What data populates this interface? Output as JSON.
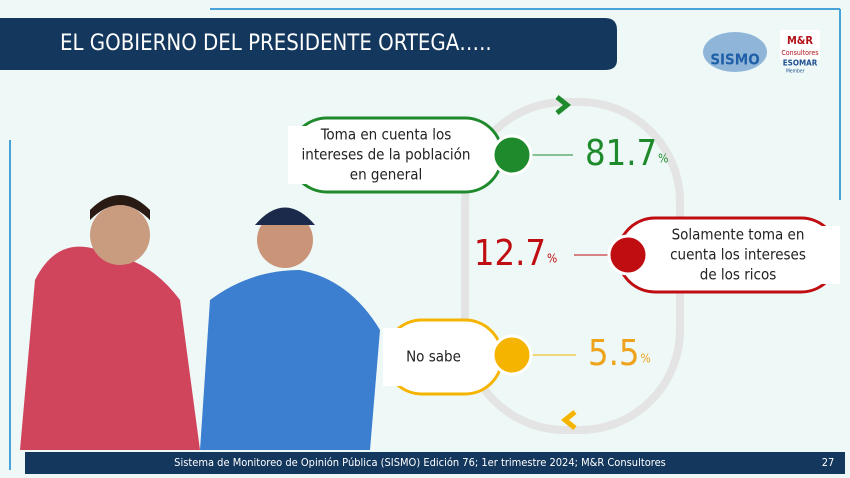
{
  "header": {
    "title": "EL GOBIERNO DEL PRESIDENTE ORTEGA….."
  },
  "logos": {
    "sismo": "SISMO",
    "mr": "M&R",
    "mr_sub": "Consultores",
    "esomar": "ESOMAR",
    "member": "Member"
  },
  "items": [
    {
      "label": [
        "Toma en cuenta los",
        "intereses de la población",
        "en general"
      ],
      "value": 81.7,
      "unit": "%",
      "color": "#1e8a2c"
    },
    {
      "label": [
        "Solamente toma en",
        "cuenta los intereses",
        "de los ricos"
      ],
      "value": 12.7,
      "unit": "%",
      "color": "#c00d12"
    },
    {
      "label": [
        "No sabe"
      ],
      "value": 5.5,
      "unit": "%",
      "color": "#f5b400"
    }
  ],
  "footer": {
    "source": "Sistema de Monitoreo de Opinión Pública (SISMO) Edición 76; 1er trimestre 2024; M&R Consultores",
    "page": "27"
  }
}
